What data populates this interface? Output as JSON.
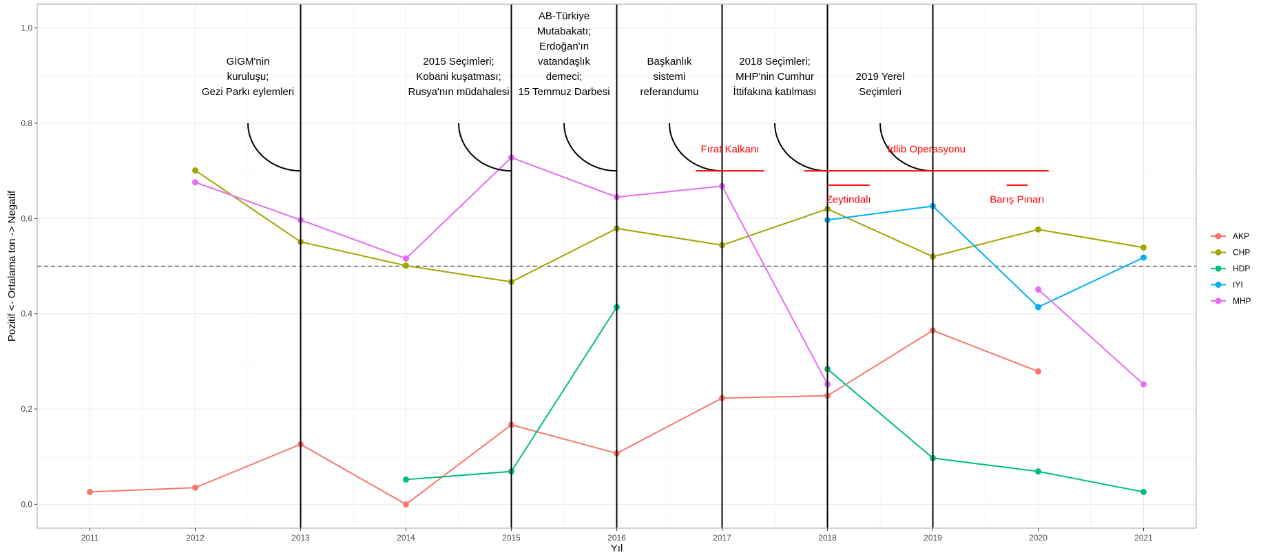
{
  "chart_data": {
    "type": "line",
    "xlabel": "Yıl",
    "ylabel": "Pozitif <- Ortalama ton -> Negatif",
    "xlim": [
      2010.5,
      2021.5
    ],
    "ylim": [
      -0.05,
      1.05
    ],
    "x_ticks": [
      2011,
      2012,
      2013,
      2014,
      2015,
      2016,
      2017,
      2018,
      2019,
      2020,
      2021
    ],
    "y_ticks": [
      0.0,
      0.2,
      0.4,
      0.6,
      0.8,
      1.0
    ],
    "y_tick_labels": [
      "0.0",
      "0.2",
      "0.4",
      "0.6",
      "0.8",
      "1.0"
    ],
    "grid": true,
    "legend_position": "right",
    "reference_line": {
      "y": 0.5,
      "style": "dashed"
    },
    "series": [
      {
        "name": "AKP",
        "color": "#F8766D",
        "points": [
          [
            2011,
            0.026
          ],
          [
            2012,
            0.035
          ],
          [
            2013,
            0.126
          ],
          [
            2014,
            0.0
          ],
          [
            2015,
            0.167
          ],
          [
            2016,
            0.107
          ],
          [
            2017,
            0.223
          ],
          [
            2018,
            0.228
          ],
          [
            2019,
            0.365
          ],
          [
            2020,
            0.279
          ]
        ]
      },
      {
        "name": "CHP",
        "color": "#A3A500",
        "points": [
          [
            2012,
            0.701
          ],
          [
            2013,
            0.551
          ],
          [
            2014,
            0.501
          ],
          [
            2015,
            0.467
          ],
          [
            2016,
            0.579
          ],
          [
            2017,
            0.544
          ],
          [
            2018,
            0.62
          ],
          [
            2019,
            0.52
          ],
          [
            2020,
            0.577
          ],
          [
            2021,
            0.539
          ]
        ]
      },
      {
        "name": "HDP",
        "color": "#00BF7D",
        "points": [
          [
            2014,
            0.052
          ],
          [
            2015,
            0.069
          ],
          [
            2016,
            0.414
          ],
          [
            2018,
            0.284
          ],
          [
            2019,
            0.097
          ],
          [
            2020,
            0.069
          ],
          [
            2021,
            0.026
          ]
        ],
        "segments": [
          [
            0,
            2
          ],
          [
            3,
            6
          ]
        ]
      },
      {
        "name": "IYI",
        "color": "#00B0F6",
        "points": [
          [
            2018,
            0.597
          ],
          [
            2019,
            0.626
          ],
          [
            2020,
            0.414
          ],
          [
            2021,
            0.518
          ]
        ]
      },
      {
        "name": "MHP",
        "color": "#E76BF3",
        "points": [
          [
            2012,
            0.676
          ],
          [
            2013,
            0.597
          ],
          [
            2014,
            0.516
          ],
          [
            2015,
            0.728
          ],
          [
            2016,
            0.645
          ],
          [
            2017,
            0.668
          ],
          [
            2018,
            0.252
          ],
          [
            2020,
            0.451
          ],
          [
            2021,
            0.252
          ]
        ],
        "segments": [
          [
            0,
            6
          ],
          [
            7,
            8
          ]
        ]
      }
    ],
    "event_lines": [
      2013,
      2015,
      2016,
      2017,
      2018,
      2019
    ],
    "events": [
      {
        "x": 2013,
        "lines": [
          "GİGM'nin",
          "kuruluşu;",
          "Gezi Parkı eylemleri"
        ]
      },
      {
        "x": 2015,
        "lines": [
          "2015 Seçimleri;",
          "Kobani kuşatması;",
          "Rusya'nın müdahalesi"
        ]
      },
      {
        "x": 2016,
        "lines": [
          "AB-Türkiye",
          "Mutabakatı;",
          "Erdoğan'ın",
          "vatandaşlık",
          "demeci;",
          "15 Temmuz Darbesi"
        ]
      },
      {
        "x": 2017,
        "lines": [
          "Başkanlık",
          "sistemi",
          "referandumu"
        ]
      },
      {
        "x": 2018,
        "lines": [
          "2018 Seçimleri;",
          "MHP'nin Cumhur",
          "İttifakına katılması"
        ]
      },
      {
        "x": 2019,
        "lines": [
          "2019 Yerel",
          "Seçimleri"
        ]
      }
    ],
    "operations": [
      {
        "label": "Fırat Kalkanı",
        "start": 2016.75,
        "end": 2017.4,
        "y": 0.7,
        "label_y": 0.746
      },
      {
        "label": "Idlib Operasyonu",
        "start": 2017.78,
        "end": 2020.1,
        "y": 0.7,
        "label_y": 0.746
      },
      {
        "label": "Zeytindalı",
        "start": 2018.0,
        "end": 2018.4,
        "y": 0.67,
        "label_y": 0.64
      },
      {
        "label": "Barış Pınarı",
        "start": 2019.7,
        "end": 2019.9,
        "y": 0.67,
        "label_y": 0.64
      }
    ],
    "colors": {
      "grid": "#EBEBEB",
      "panel_border": "#B3B3B3",
      "event_line": "#000000",
      "operation": "#FF0000"
    }
  }
}
